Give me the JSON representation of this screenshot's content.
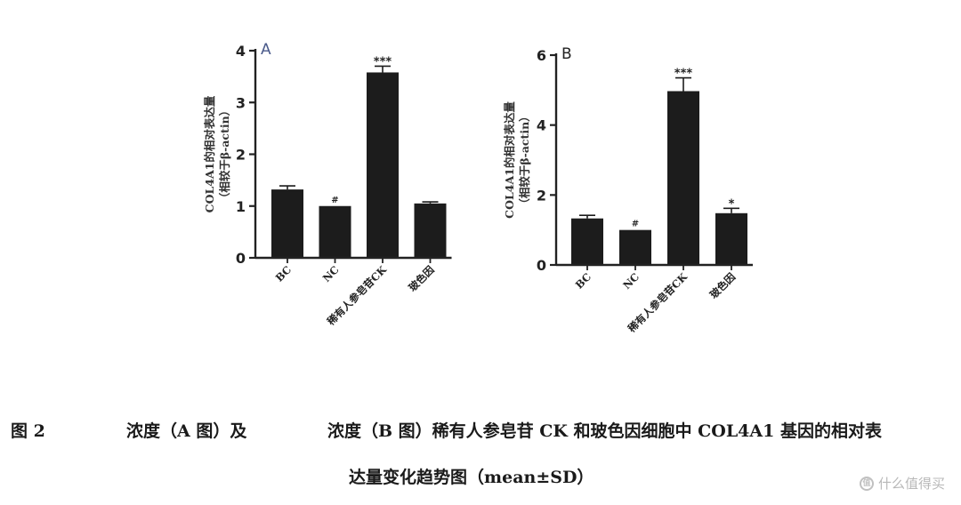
{
  "chart_data": [
    {
      "type": "bar",
      "panel_label": "A",
      "ylabel_line1": "COL4A1的相对表达量",
      "ylabel_line2": "（相较于β-actin）",
      "categories": [
        "BC",
        "NC",
        "稀有人参皂苷CK",
        "玻色因"
      ],
      "series": [
        {
          "values": [
            1.32,
            1.0,
            3.58,
            1.05
          ],
          "errors": [
            0.07,
            0.0,
            0.12,
            0.03
          ]
        }
      ],
      "annotations": [
        "",
        "#",
        "***",
        ""
      ],
      "ylim": [
        0,
        4
      ],
      "yticks": [
        0,
        1,
        2,
        3,
        4
      ]
    },
    {
      "type": "bar",
      "panel_label": "B",
      "ylabel_line1": "COL4A1的相对表达量",
      "ylabel_line2": "（相较于β-actin）",
      "categories": [
        "BC",
        "NC",
        "稀有人参皂苷CK",
        "玻色因"
      ],
      "series": [
        {
          "values": [
            1.33,
            1.0,
            4.97,
            1.48
          ],
          "errors": [
            0.09,
            0.0,
            0.38,
            0.14
          ]
        }
      ],
      "annotations": [
        "",
        "#",
        "***",
        "*"
      ],
      "ylim": [
        0,
        6
      ],
      "yticks": [
        0,
        2,
        4,
        6
      ]
    }
  ],
  "caption": {
    "label": "图 2",
    "part1": "浓度（A 图）及",
    "part2": "浓度（B 图）稀有人参皂苷 CK 和玻色因细胞中 COL4A1 基因的相对表",
    "line2": "达量变化趋势图（mean±SD）"
  },
  "watermark": {
    "icon": "值",
    "text": "什么值得买"
  }
}
